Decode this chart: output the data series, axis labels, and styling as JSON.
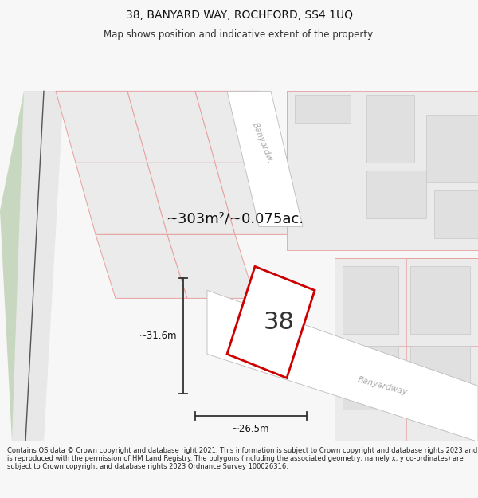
{
  "title": "38, BANYARD WAY, ROCHFORD, SS4 1UQ",
  "subtitle": "Map shows position and indicative extent of the property.",
  "footer": "Contains OS data © Crown copyright and database right 2021. This information is subject to Crown copyright and database rights 2023 and is reproduced with the permission of HM Land Registry. The polygons (including the associated geometry, namely x, y co-ordinates) are subject to Crown copyright and database rights 2023 Ordnance Survey 100026316.",
  "area_text": "~303m²/~0.075ac.",
  "label_38": "38",
  "dim_height": "~31.6m",
  "dim_width": "~26.5m",
  "road_label1": "Banyardw.",
  "road_label2": "Banyardway",
  "bg_color": "#f7f7f7",
  "map_bg": "#f0eeea",
  "parcel_fill": "#ebebeb",
  "parcel_stroke": "#e8a0a0",
  "building_fill": "#e0e0e0",
  "building_stroke": "#cccccc",
  "plot_fill": "#ffffff",
  "plot_edge_color": "#cc0000",
  "green_color": "#c8d8c0",
  "road_fill": "#ffffff",
  "road_edge": "#cccccc",
  "fig_width": 6.0,
  "fig_height": 6.25,
  "title_fontsize": 10,
  "subtitle_fontsize": 8.5,
  "footer_fontsize": 6.0
}
